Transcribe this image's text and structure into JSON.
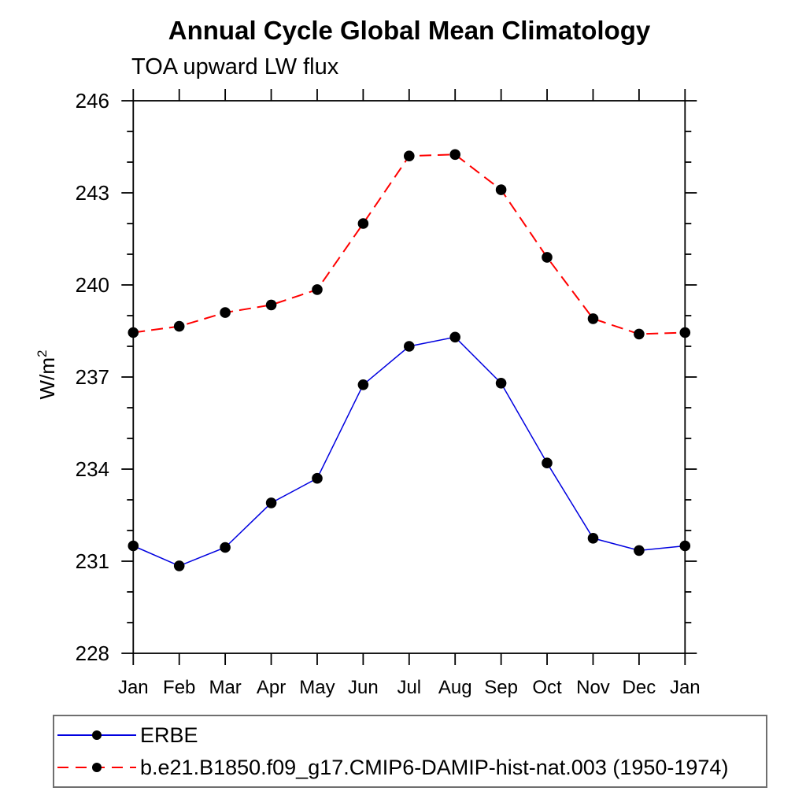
{
  "header": {
    "title": "Annual Cycle Global Mean Climatology",
    "subtitle": "TOA upward LW flux"
  },
  "axes": {
    "ylabel_base": "W/m",
    "ylabel_exponent": "2",
    "y_tick_labels": [
      "228",
      "231",
      "234",
      "237",
      "240",
      "243",
      "246"
    ],
    "x_tick_labels": [
      "Jan",
      "Feb",
      "Mar",
      "Apr",
      "May",
      "Jun",
      "Jul",
      "Aug",
      "Sep",
      "Oct",
      "Nov",
      "Dec",
      "Jan"
    ]
  },
  "colors": {
    "background": "#ffffff",
    "axis": "#000000",
    "marker": "#000000",
    "erbe_line": "#0000e0",
    "model_line": "#ff0000",
    "legend_border": "#6f6f6f"
  },
  "chart_data": {
    "type": "line",
    "title": "Annual Cycle Global Mean Climatology",
    "subtitle": "TOA upward LW flux",
    "ylabel": "W/m^2",
    "ylabel_base": "W/m",
    "ylabel_exponent": "2",
    "categories": [
      "Jan",
      "Feb",
      "Mar",
      "Apr",
      "May",
      "Jun",
      "Jul",
      "Aug",
      "Sep",
      "Oct",
      "Nov",
      "Dec",
      "Jan"
    ],
    "ylim": [
      228,
      246
    ],
    "yticks": [
      228,
      231,
      234,
      237,
      240,
      243,
      246
    ],
    "y_minor_step": 1,
    "grid": false,
    "legend_position": "bottom",
    "series": [
      {
        "name": "ERBE",
        "color": "#0000e0",
        "style": "solid",
        "marker": "circle",
        "marker_color": "#000000",
        "values": [
          231.5,
          230.85,
          231.45,
          232.9,
          233.7,
          236.75,
          238.0,
          238.3,
          236.8,
          234.2,
          231.75,
          231.35,
          231.5
        ]
      },
      {
        "name": "b.e21.B1850.f09_g17.CMIP6-DAMIP-hist-nat.003 (1950-1974)",
        "color": "#ff0000",
        "style": "dashed",
        "marker": "circle",
        "marker_color": "#000000",
        "values": [
          238.45,
          238.65,
          239.1,
          239.35,
          239.85,
          242.0,
          244.2,
          244.25,
          243.1,
          240.9,
          238.9,
          238.4,
          238.45
        ]
      }
    ]
  }
}
